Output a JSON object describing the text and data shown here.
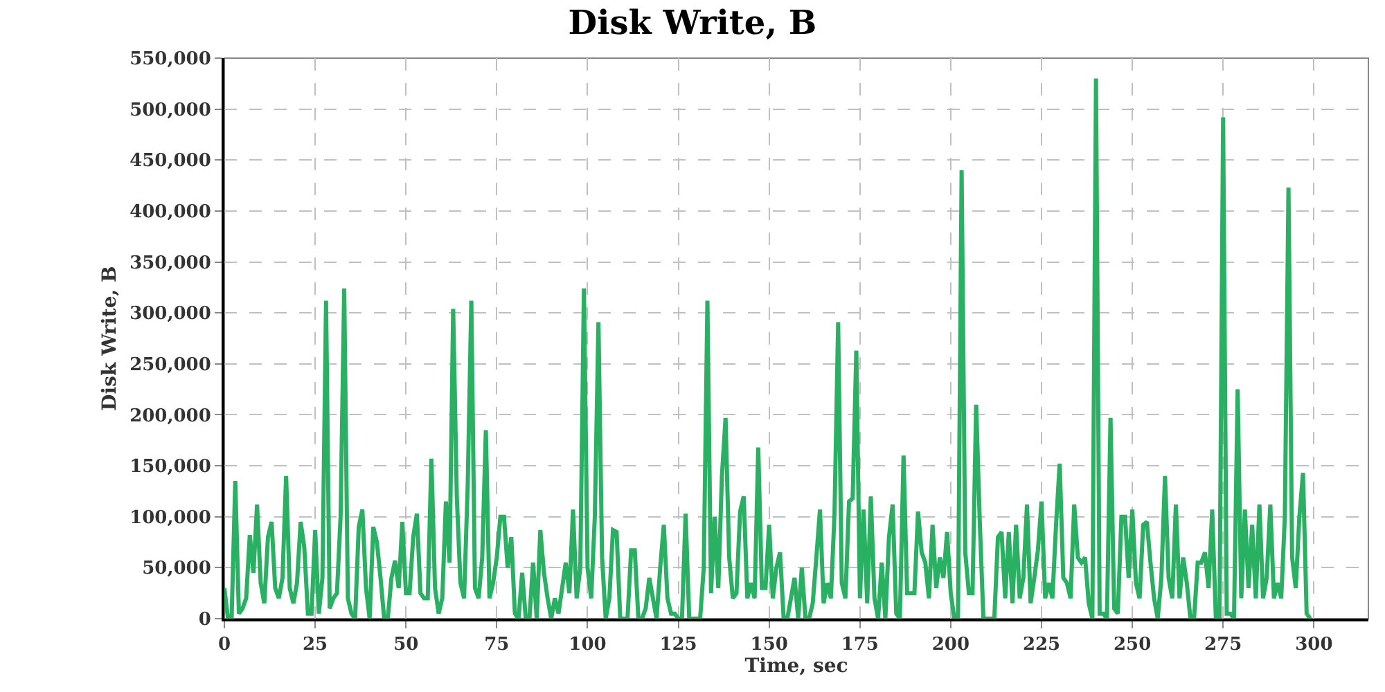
{
  "chart_data": {
    "type": "line",
    "title": "Disk Write, B",
    "xlabel": "Time, sec",
    "ylabel": "Disk Write, B",
    "x": [
      0,
      1,
      2,
      3,
      4,
      5,
      6,
      7,
      8,
      9,
      10,
      11,
      12,
      13,
      14,
      15,
      16,
      17,
      18,
      19,
      20,
      21,
      22,
      23,
      24,
      25,
      26,
      27,
      28,
      29,
      30,
      31,
      32,
      33,
      34,
      35,
      36,
      37,
      38,
      39,
      40,
      41,
      42,
      43,
      44,
      45,
      46,
      47,
      48,
      49,
      50,
      51,
      52,
      53,
      54,
      55,
      56,
      57,
      58,
      59,
      60,
      61,
      62,
      63,
      64,
      65,
      66,
      67,
      68,
      69,
      70,
      71,
      72,
      73,
      74,
      75,
      76,
      77,
      78,
      79,
      80,
      81,
      82,
      83,
      84,
      85,
      86,
      87,
      88,
      89,
      90,
      91,
      92,
      93,
      94,
      95,
      96,
      97,
      98,
      99,
      100,
      101,
      102,
      103,
      104,
      105,
      106,
      107,
      108,
      109,
      110,
      111,
      112,
      113,
      114,
      115,
      116,
      117,
      118,
      119,
      120,
      121,
      122,
      123,
      124,
      125,
      126,
      127,
      128,
      129,
      130,
      131,
      132,
      133,
      134,
      135,
      136,
      137,
      138,
      139,
      140,
      141,
      142,
      143,
      144,
      145,
      146,
      147,
      148,
      149,
      150,
      151,
      152,
      153,
      154,
      155,
      156,
      157,
      158,
      159,
      160,
      161,
      162,
      163,
      164,
      165,
      166,
      167,
      168,
      169,
      170,
      171,
      172,
      173,
      174,
      175,
      176,
      177,
      178,
      179,
      180,
      181,
      182,
      183,
      184,
      185,
      186,
      187,
      188,
      189,
      190,
      191,
      192,
      193,
      194,
      195,
      196,
      197,
      198,
      199,
      200,
      201,
      202,
      203,
      204,
      205,
      206,
      207,
      208,
      209,
      210,
      211,
      212,
      213,
      214,
      215,
      216,
      217,
      218,
      219,
      220,
      221,
      222,
      223,
      224,
      225,
      226,
      227,
      228,
      229,
      230,
      231,
      232,
      233,
      234,
      235,
      236,
      237,
      238,
      239,
      240,
      241,
      242,
      243,
      244,
      245,
      246,
      247,
      248,
      249,
      250,
      251,
      252,
      253,
      254,
      255,
      256,
      257,
      258,
      259,
      260,
      261,
      262,
      263,
      264,
      265,
      266,
      267,
      268,
      269,
      270,
      271,
      272,
      273,
      274,
      275,
      276,
      277,
      278,
      279,
      280,
      281,
      282,
      283,
      284,
      285,
      286,
      287,
      288,
      289,
      290,
      291,
      292,
      293,
      294,
      295,
      296,
      297,
      298,
      299
    ],
    "series": [
      {
        "color": "#2ab063",
        "values": [
          30000,
          0,
          0,
          135000,
          5000,
          10000,
          20000,
          82000,
          45000,
          112000,
          35000,
          15000,
          80000,
          95000,
          30000,
          20000,
          40000,
          140000,
          30000,
          15000,
          35000,
          95000,
          70000,
          5000,
          5000,
          87000,
          5000,
          40000,
          312000,
          10000,
          20000,
          25000,
          100000,
          324000,
          20000,
          5000,
          0,
          90000,
          107000,
          30000,
          0,
          90000,
          75000,
          40000,
          0,
          0,
          40000,
          57000,
          30000,
          95000,
          25000,
          25000,
          80000,
          103000,
          25000,
          20000,
          20000,
          157000,
          30000,
          5000,
          20000,
          115000,
          55000,
          304000,
          120000,
          35000,
          20000,
          130000,
          312000,
          30000,
          20000,
          60000,
          185000,
          20000,
          35000,
          60000,
          100000,
          100000,
          50000,
          80000,
          5000,
          0,
          45000,
          0,
          0,
          55000,
          0,
          87000,
          45000,
          20000,
          0,
          20000,
          5000,
          30000,
          55000,
          25000,
          107000,
          20000,
          50000,
          324000,
          50000,
          20000,
          100000,
          291000,
          60000,
          0,
          20000,
          87000,
          85000,
          0,
          0,
          0,
          67000,
          67000,
          0,
          0,
          10000,
          40000,
          20000,
          0,
          50000,
          92000,
          20000,
          5000,
          5000,
          0,
          0,
          103000,
          0,
          0,
          0,
          0,
          50000,
          312000,
          25000,
          100000,
          30000,
          140000,
          197000,
          60000,
          20000,
          25000,
          105000,
          120000,
          20000,
          35000,
          20000,
          168000,
          30000,
          30000,
          92000,
          20000,
          50000,
          65000,
          0,
          0,
          20000,
          40000,
          0,
          50000,
          0,
          0,
          15000,
          60000,
          107000,
          15000,
          35000,
          20000,
          103000,
          291000,
          35000,
          20000,
          115000,
          118000,
          263000,
          20000,
          107000,
          15000,
          120000,
          20000,
          0,
          55000,
          0,
          80000,
          112000,
          5000,
          0,
          160000,
          25000,
          25000,
          25000,
          105000,
          65000,
          55000,
          20000,
          92000,
          30000,
          60000,
          40000,
          85000,
          25000,
          0,
          0,
          440000,
          65000,
          25000,
          25000,
          210000,
          95000,
          0,
          0,
          0,
          0,
          80000,
          85000,
          20000,
          85000,
          15000,
          92000,
          20000,
          40000,
          112000,
          15000,
          40000,
          67000,
          115000,
          20000,
          35000,
          20000,
          92000,
          152000,
          40000,
          35000,
          20000,
          112000,
          60000,
          55000,
          60000,
          15000,
          0,
          530000,
          5000,
          5000,
          0,
          197000,
          10000,
          5000,
          100000,
          100000,
          40000,
          107000,
          35000,
          20000,
          92000,
          95000,
          55000,
          20000,
          0,
          40000,
          140000,
          40000,
          20000,
          112000,
          20000,
          60000,
          35000,
          0,
          0,
          55000,
          55000,
          65000,
          30000,
          107000,
          0,
          0,
          492000,
          5000,
          5000,
          0,
          225000,
          20000,
          107000,
          30000,
          92000,
          20000,
          112000,
          20000,
          40000,
          112000,
          20000,
          35000,
          20000,
          100000,
          423000,
          60000,
          30000,
          100000,
          143000,
          5000,
          0
        ]
      }
    ],
    "xlim": [
      0,
      315
    ],
    "xticks": [
      0,
      25,
      50,
      75,
      100,
      125,
      150,
      175,
      200,
      225,
      250,
      275,
      300
    ],
    "ylim": [
      0,
      550000
    ],
    "yticks": [
      {
        "value": 0,
        "label": "0"
      },
      {
        "value": 50000,
        "label": "50,000"
      },
      {
        "value": 100000,
        "label": "100,000"
      },
      {
        "value": 150000,
        "label": "150,000"
      },
      {
        "value": 200000,
        "label": "200,000"
      },
      {
        "value": 250000,
        "label": "250,000"
      },
      {
        "value": 300000,
        "label": "300,000"
      },
      {
        "value": 350000,
        "label": "350,000"
      },
      {
        "value": 400000,
        "label": "400,000"
      },
      {
        "value": 450000,
        "label": "450,000"
      },
      {
        "value": 500000,
        "label": "500,000"
      },
      {
        "value": 550000,
        "label": "550,000"
      }
    ],
    "grid": true,
    "marker": "none",
    "line_style": "solid"
  }
}
